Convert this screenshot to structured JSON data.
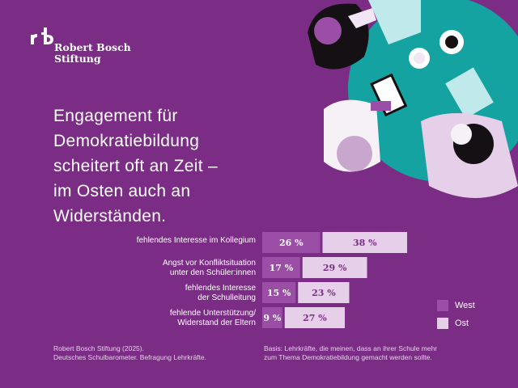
{
  "logo": {
    "line1": "Robert Bosch",
    "line2": "Stiftung"
  },
  "headline": {
    "lines": [
      "Engagement für",
      "Demokratiebildung",
      "scheitert oft an Zeit –",
      "im Osten auch an",
      "Widerständen."
    ]
  },
  "colors": {
    "background": "#7b2d86",
    "west": "#9a4ea6",
    "ost": "#e6cfe9",
    "teal": "#14a3a0"
  },
  "chart_data": {
    "type": "bar",
    "orientation": "horizontal",
    "stacked": true,
    "categories": [
      [
        "fehlendes Interesse im Kollegium"
      ],
      [
        "Angst vor Konfliktsituation",
        "unter den Schüler:innen"
      ],
      [
        "fehlendes Interesse",
        "der Schulleitung"
      ],
      [
        "fehlende Unterstützung/",
        "Widerstand der Eltern"
      ]
    ],
    "series": [
      {
        "name": "West",
        "values": [
          26,
          17,
          15,
          9
        ],
        "labels": [
          "26 %",
          "17 %",
          "15 %",
          "9 %"
        ]
      },
      {
        "name": "Ost",
        "values": [
          38,
          29,
          23,
          27
        ],
        "labels": [
          "38 %",
          "29 %",
          "23 %",
          "27 %"
        ]
      }
    ],
    "legend": "right",
    "grid": false
  },
  "footer": {
    "source_line1": "Robert Bosch Stiftung (2025).",
    "source_line2": "Deutsches Schulbarometer. Befragung Lehrkräfte.",
    "basis_line1": "Basis: Lehrkräfte, die meinen, dass an ihrer Schule mehr",
    "basis_line2": "zum Thema Demokratiebildung gemacht werden sollte."
  }
}
